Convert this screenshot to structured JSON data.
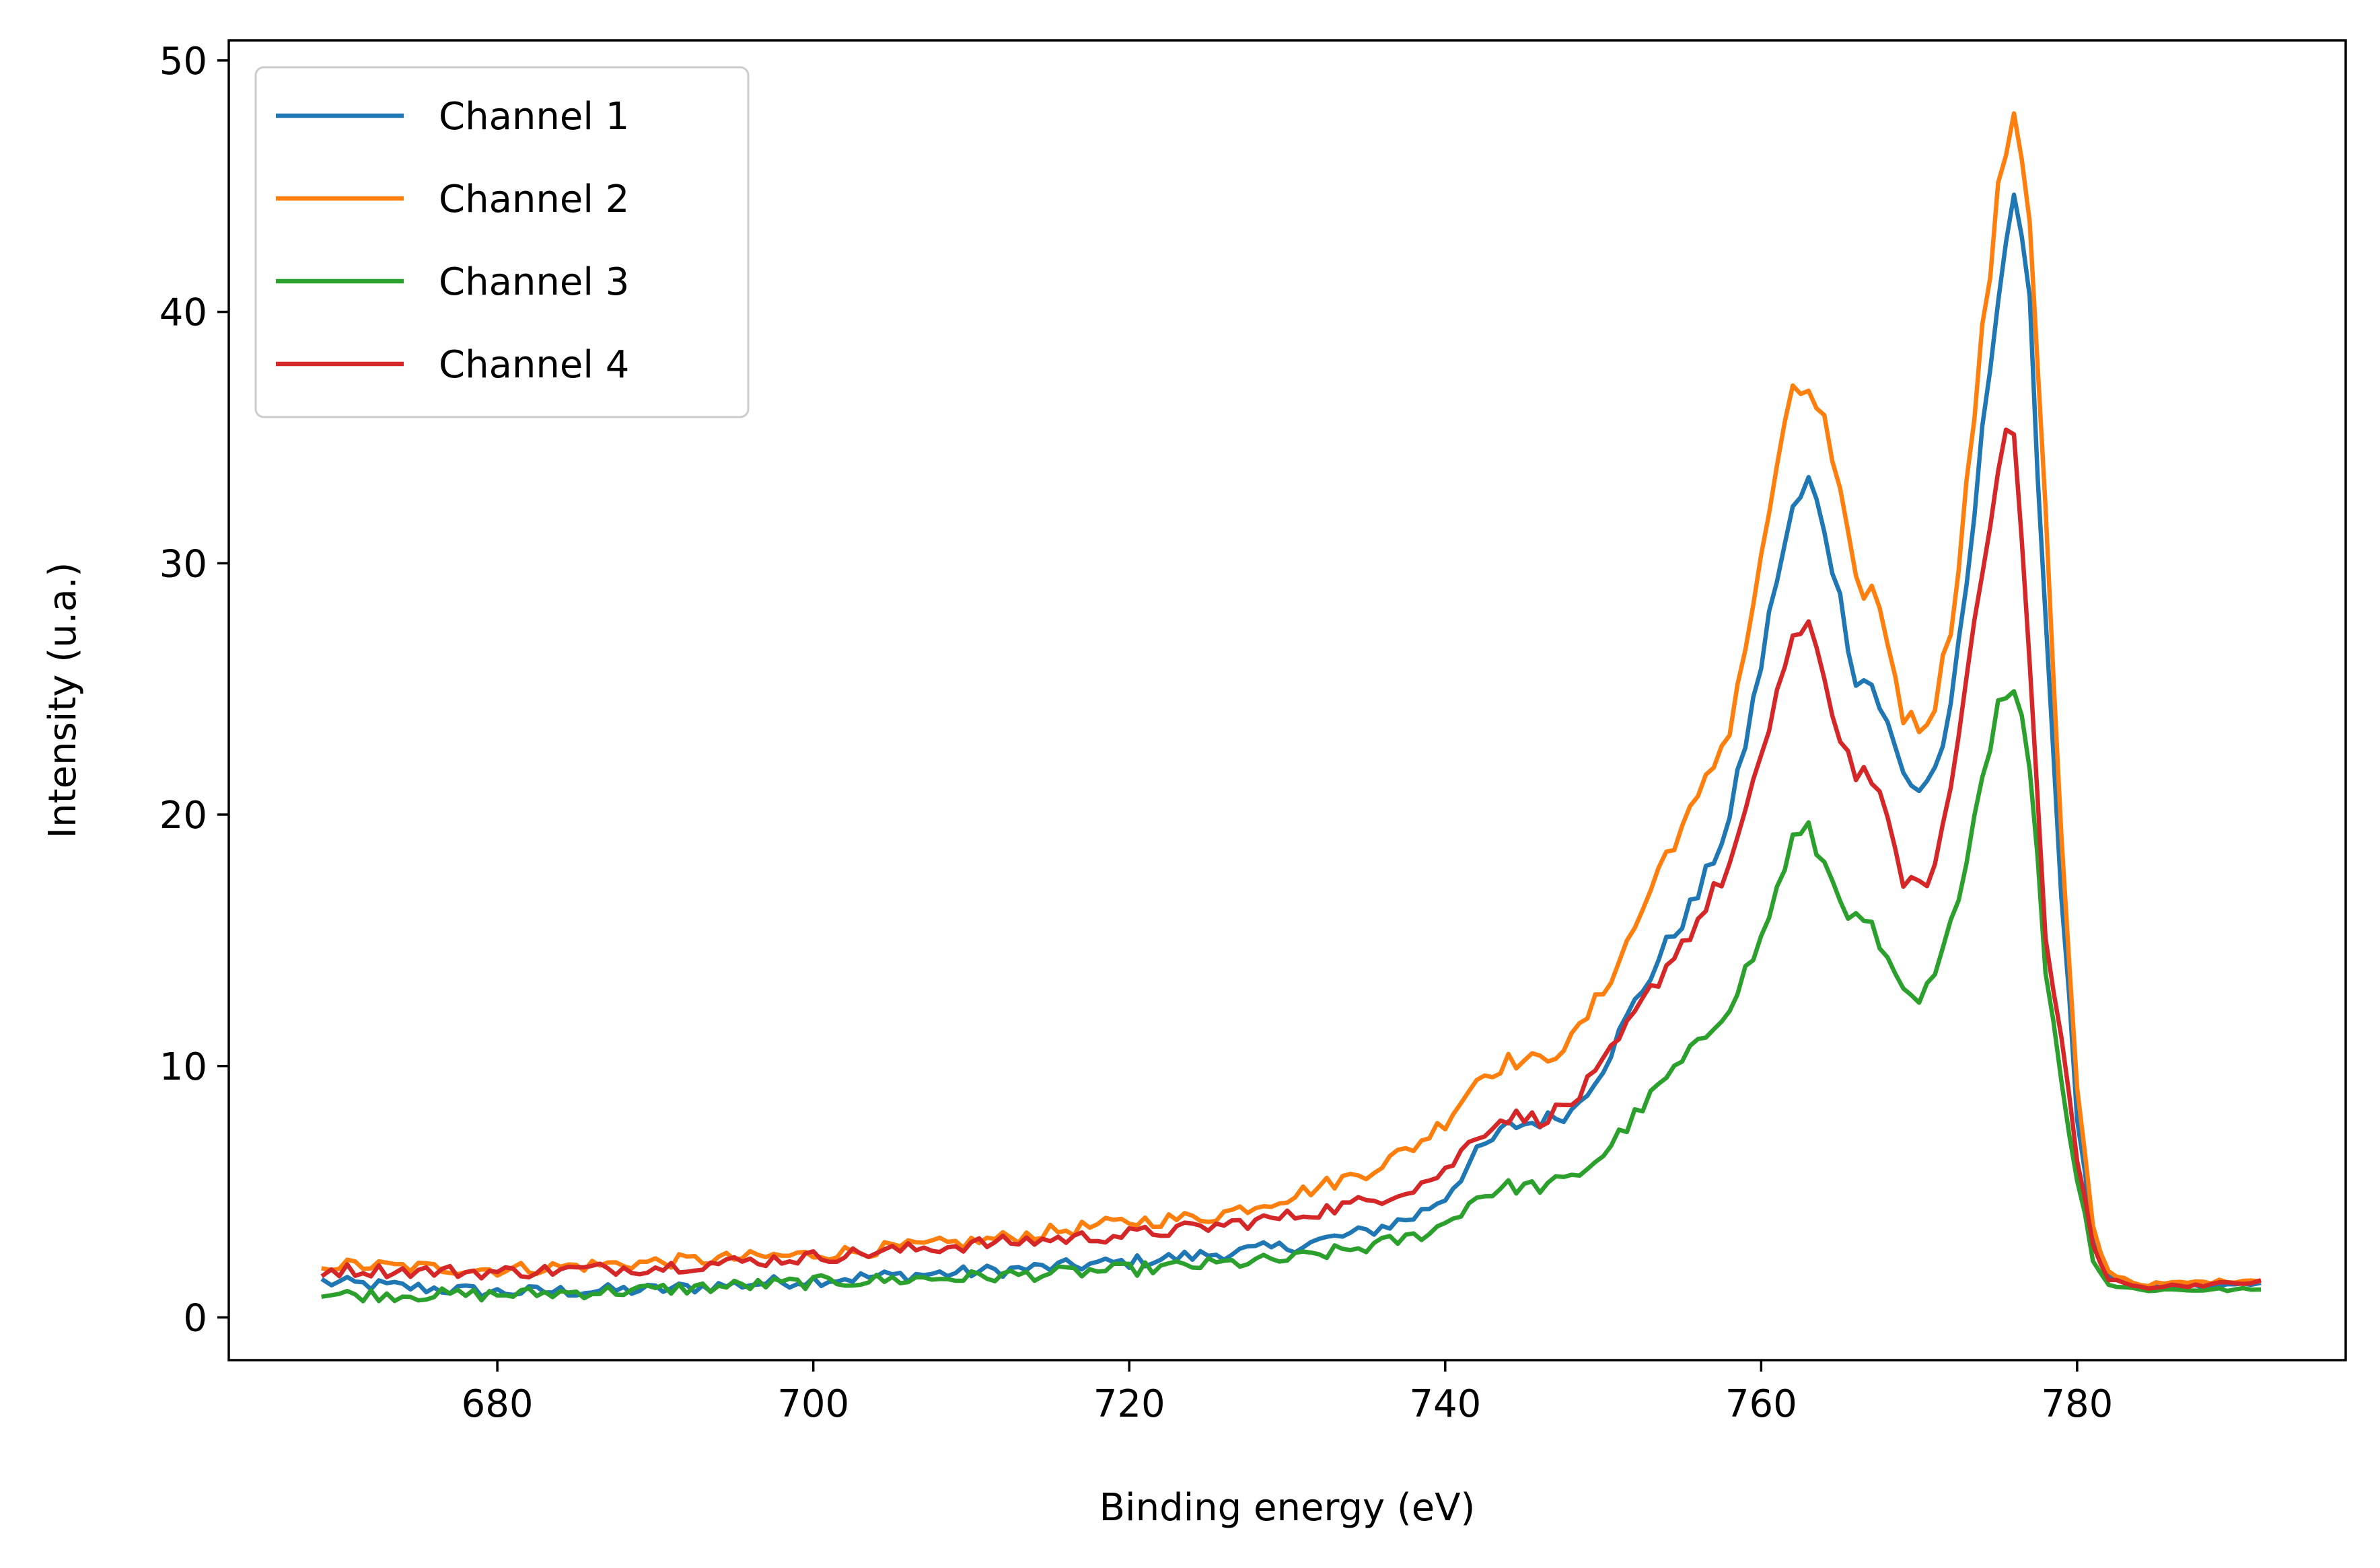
{
  "chart_data": {
    "type": "line",
    "xlabel": "Binding energy (eV)",
    "ylabel": "Intensity (u.a.)",
    "xlim": [
      663,
      797
    ],
    "ylim": [
      -1.7,
      50.8
    ],
    "xticks": [
      680,
      700,
      720,
      740,
      760,
      780
    ],
    "yticks": [
      0,
      10,
      20,
      30,
      40,
      50
    ],
    "grid": false,
    "legend_position": "top-left",
    "x_range": [
      669,
      791.5
    ],
    "series": [
      {
        "name": "Channel 1",
        "color": "#1f77b4",
        "points": [
          [
            669,
            1.4
          ],
          [
            680,
            1.0
          ],
          [
            690,
            1.1
          ],
          [
            700,
            1.5
          ],
          [
            710,
            1.8
          ],
          [
            720,
            2.2
          ],
          [
            730,
            2.8
          ],
          [
            735,
            3.4
          ],
          [
            738,
            4.0
          ],
          [
            740,
            4.8
          ],
          [
            742,
            6.5
          ],
          [
            744,
            7.6
          ],
          [
            746,
            7.8
          ],
          [
            748,
            8.2
          ],
          [
            750,
            10.0
          ],
          [
            752,
            12.5
          ],
          [
            754,
            14.8
          ],
          [
            756,
            16.8
          ],
          [
            758,
            19.8
          ],
          [
            760,
            26.0
          ],
          [
            761,
            29.5
          ],
          [
            762,
            32.0
          ],
          [
            763,
            33.2
          ],
          [
            764,
            31.5
          ],
          [
            765,
            28.5
          ],
          [
            766,
            25.5
          ],
          [
            767,
            25.2
          ],
          [
            768,
            23.5
          ],
          [
            769,
            21.6
          ],
          [
            770,
            21.0
          ],
          [
            771,
            21.8
          ],
          [
            772,
            24.0
          ],
          [
            773,
            29.0
          ],
          [
            774,
            35.0
          ],
          [
            775,
            41.0
          ],
          [
            776,
            44.8
          ],
          [
            777,
            40.0
          ],
          [
            778,
            28.0
          ],
          [
            779,
            17.0
          ],
          [
            780,
            8.0
          ],
          [
            781,
            3.0
          ],
          [
            782,
            1.6
          ],
          [
            784,
            1.2
          ],
          [
            791.5,
            1.3
          ]
        ]
      },
      {
        "name": "Channel 2",
        "color": "#ff7f0e",
        "points": [
          [
            669,
            2.1
          ],
          [
            680,
            1.9
          ],
          [
            690,
            2.2
          ],
          [
            700,
            2.5
          ],
          [
            710,
            3.0
          ],
          [
            720,
            3.8
          ],
          [
            725,
            4.0
          ],
          [
            730,
            4.8
          ],
          [
            735,
            5.8
          ],
          [
            738,
            6.8
          ],
          [
            740,
            7.8
          ],
          [
            742,
            9.5
          ],
          [
            744,
            10.2
          ],
          [
            746,
            10.2
          ],
          [
            748,
            11.0
          ],
          [
            750,
            13.0
          ],
          [
            752,
            15.5
          ],
          [
            754,
            18.5
          ],
          [
            756,
            20.5
          ],
          [
            758,
            23.5
          ],
          [
            760,
            30.0
          ],
          [
            761,
            34.0
          ],
          [
            762,
            36.5
          ],
          [
            763,
            37.0
          ],
          [
            764,
            35.5
          ],
          [
            765,
            32.5
          ],
          [
            766,
            29.0
          ],
          [
            767,
            29.0
          ],
          [
            768,
            27.0
          ],
          [
            769,
            24.0
          ],
          [
            770,
            23.5
          ],
          [
            771,
            24.5
          ],
          [
            772,
            27.5
          ],
          [
            773,
            33.0
          ],
          [
            774,
            39.0
          ],
          [
            775,
            44.5
          ],
          [
            776,
            48.3
          ],
          [
            777,
            44.0
          ],
          [
            778,
            32.0
          ],
          [
            779,
            19.0
          ],
          [
            780,
            9.0
          ],
          [
            781,
            3.5
          ],
          [
            782,
            1.8
          ],
          [
            784,
            1.3
          ],
          [
            791.5,
            1.5
          ]
        ]
      },
      {
        "name": "Channel 3",
        "color": "#2ca02c",
        "points": [
          [
            669,
            0.9
          ],
          [
            680,
            0.9
          ],
          [
            690,
            1.1
          ],
          [
            700,
            1.4
          ],
          [
            710,
            1.6
          ],
          [
            720,
            1.9
          ],
          [
            730,
            2.3
          ],
          [
            735,
            2.8
          ],
          [
            738,
            3.2
          ],
          [
            740,
            3.7
          ],
          [
            742,
            4.8
          ],
          [
            744,
            5.2
          ],
          [
            746,
            5.2
          ],
          [
            748,
            5.5
          ],
          [
            750,
            6.5
          ],
          [
            752,
            8.0
          ],
          [
            754,
            9.5
          ],
          [
            756,
            10.8
          ],
          [
            758,
            12.5
          ],
          [
            760,
            15.0
          ],
          [
            761,
            17.0
          ],
          [
            762,
            19.0
          ],
          [
            763,
            19.3
          ],
          [
            764,
            18.0
          ],
          [
            765,
            16.8
          ],
          [
            766,
            15.7
          ],
          [
            767,
            15.5
          ],
          [
            768,
            14.0
          ],
          [
            769,
            12.8
          ],
          [
            770,
            12.5
          ],
          [
            771,
            13.5
          ],
          [
            772,
            15.5
          ],
          [
            773,
            18.5
          ],
          [
            774,
            21.5
          ],
          [
            775,
            24.5
          ],
          [
            776,
            25.3
          ],
          [
            777,
            22.0
          ],
          [
            778,
            14.0
          ],
          [
            779,
            9.5
          ],
          [
            780,
            5.5
          ],
          [
            781,
            2.5
          ],
          [
            782,
            1.3
          ],
          [
            784,
            1.1
          ],
          [
            791.5,
            1.1
          ]
        ]
      },
      {
        "name": "Channel 4",
        "color": "#d62728",
        "points": [
          [
            669,
            1.9
          ],
          [
            680,
            1.8
          ],
          [
            690,
            2.0
          ],
          [
            700,
            2.4
          ],
          [
            710,
            2.9
          ],
          [
            720,
            3.3
          ],
          [
            725,
            3.6
          ],
          [
            730,
            4.0
          ],
          [
            735,
            4.6
          ],
          [
            738,
            5.2
          ],
          [
            740,
            5.8
          ],
          [
            742,
            7.3
          ],
          [
            744,
            8.0
          ],
          [
            746,
            7.9
          ],
          [
            748,
            8.5
          ],
          [
            750,
            10.0
          ],
          [
            752,
            12.0
          ],
          [
            754,
            14.0
          ],
          [
            756,
            15.8
          ],
          [
            758,
            18.0
          ],
          [
            760,
            22.0
          ],
          [
            761,
            25.0
          ],
          [
            762,
            27.0
          ],
          [
            763,
            27.2
          ],
          [
            764,
            25.5
          ],
          [
            765,
            23.0
          ],
          [
            766,
            21.8
          ],
          [
            767,
            21.5
          ],
          [
            768,
            19.5
          ],
          [
            769,
            17.5
          ],
          [
            770,
            17.0
          ],
          [
            771,
            18.0
          ],
          [
            772,
            21.0
          ],
          [
            773,
            25.5
          ],
          [
            774,
            30.0
          ],
          [
            775,
            34.0
          ],
          [
            776,
            35.5
          ],
          [
            777,
            26.0
          ],
          [
            778,
            15.0
          ],
          [
            779,
            11.0
          ],
          [
            780,
            6.5
          ],
          [
            781,
            2.8
          ],
          [
            782,
            1.5
          ],
          [
            784,
            1.2
          ],
          [
            791.5,
            1.4
          ]
        ]
      }
    ]
  }
}
